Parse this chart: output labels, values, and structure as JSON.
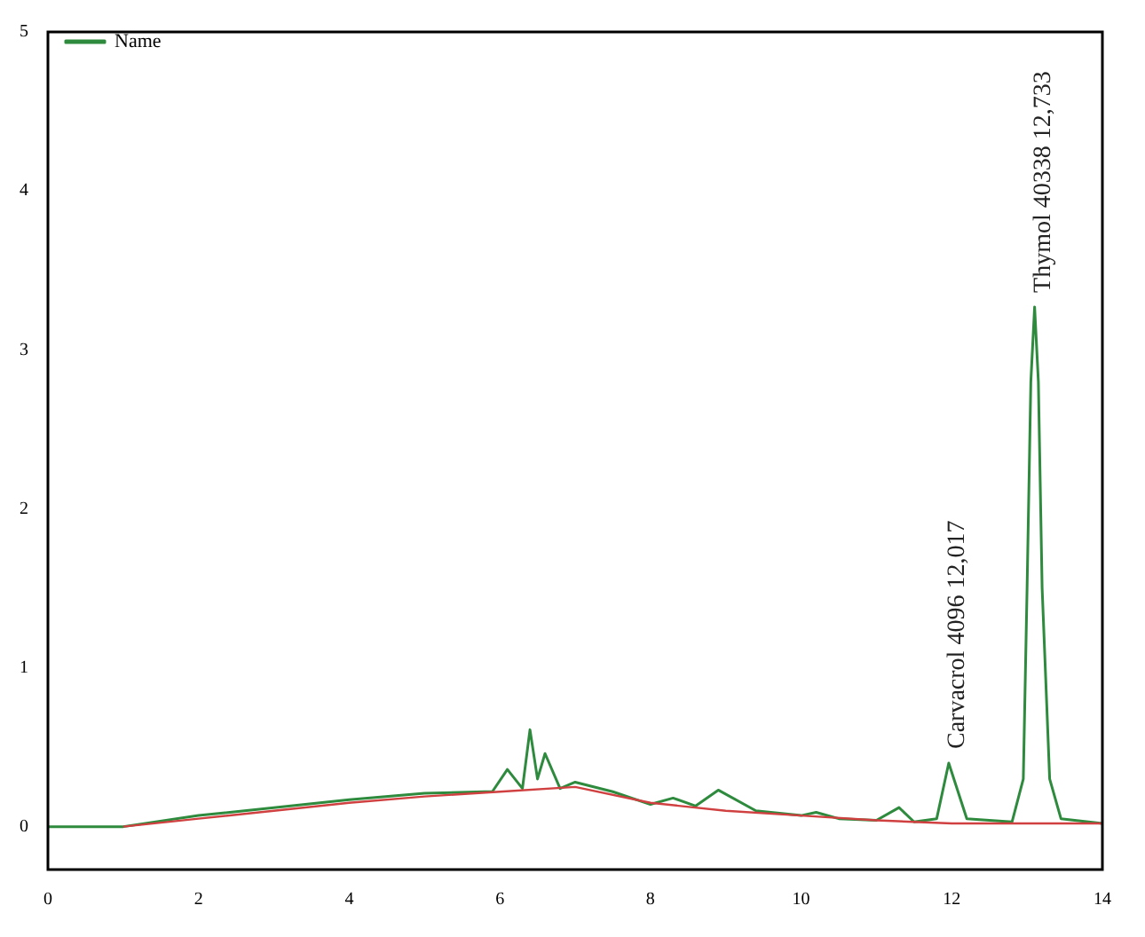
{
  "chart_data": {
    "type": "line",
    "xlim": [
      0,
      14
    ],
    "ylim": [
      -0.27,
      5
    ],
    "xticks": [
      0,
      2,
      4,
      6,
      8,
      10,
      12,
      14
    ],
    "yticks": [
      0,
      1,
      2,
      3,
      4,
      5
    ],
    "grid": false,
    "legend": "top left",
    "marker": "none",
    "line_style": "solid",
    "series": [
      {
        "name": "Name",
        "color": "#2e8b3e",
        "x": [
          0,
          1,
          2,
          3,
          4,
          5,
          5.8,
          5.9,
          6.1,
          6.3,
          6.4,
          6.5,
          6.6,
          6.8,
          7.0,
          7.5,
          8.0,
          8.3,
          8.6,
          8.9,
          9.4,
          10.0,
          10.2,
          10.5,
          11.0,
          11.3,
          11.5,
          11.8,
          11.96,
          12.2,
          12.8,
          12.95,
          13.0,
          13.05,
          13.1,
          13.15,
          13.2,
          13.3,
          13.45,
          14
        ],
        "values": [
          0,
          0,
          0.07,
          0.12,
          0.17,
          0.21,
          0.22,
          0.22,
          0.36,
          0.24,
          0.61,
          0.3,
          0.46,
          0.24,
          0.28,
          0.22,
          0.14,
          0.18,
          0.13,
          0.23,
          0.1,
          0.07,
          0.09,
          0.05,
          0.04,
          0.12,
          0.03,
          0.05,
          0.4,
          0.05,
          0.03,
          0.3,
          1.5,
          2.8,
          3.27,
          2.8,
          1.5,
          0.3,
          0.05,
          0.02
        ]
      },
      {
        "color": "#d04040",
        "x": [
          1,
          2,
          3,
          4,
          5,
          6,
          7,
          8,
          9,
          10,
          11,
          12,
          13,
          14
        ],
        "values": [
          0,
          0.05,
          0.1,
          0.15,
          0.19,
          0.22,
          0.25,
          0.15,
          0.1,
          0.07,
          0.04,
          0.02,
          0.02,
          0.02
        ]
      }
    ],
    "annotations": [
      {
        "text": "Carvacrol 4096 12,017",
        "x": 11.96,
        "y": 0.4
      },
      {
        "text": "Thymol 40338 12,733",
        "x": 13.1,
        "y": 3.27
      }
    ]
  }
}
